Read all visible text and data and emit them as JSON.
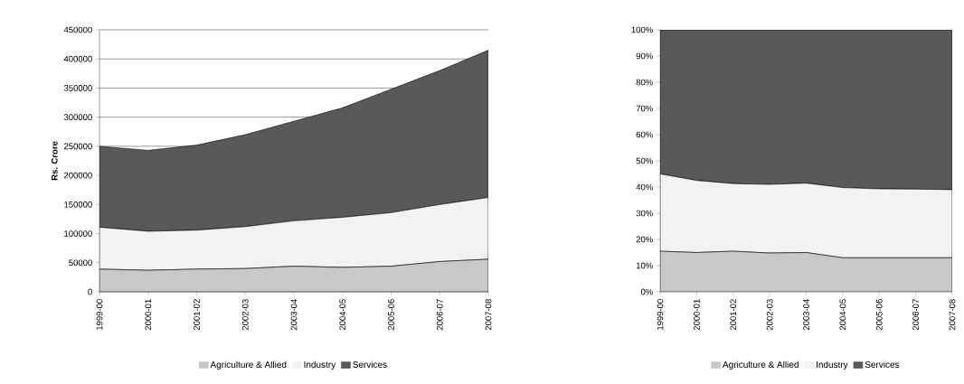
{
  "chart_data": [
    {
      "type": "area",
      "stacked": true,
      "ylabel": "Rs. Crore",
      "categories": [
        "1999-00",
        "2000-01",
        "2001-02",
        "2002-03",
        "2003-04",
        "2004-05",
        "2005-06",
        "2006-07",
        "2007-08"
      ],
      "series": [
        {
          "name": "Agriculture & Allied",
          "color": "#c8c8c8",
          "values": [
            39000,
            37000,
            39000,
            40000,
            44000,
            42000,
            44000,
            52000,
            56000
          ]
        },
        {
          "name": "Industry",
          "color": "#f2f2f2",
          "values": [
            72000,
            67000,
            67000,
            72000,
            78000,
            86000,
            92000,
            98000,
            106000
          ]
        },
        {
          "name": "Services",
          "color": "#595959",
          "values": [
            139000,
            139000,
            146000,
            158000,
            171000,
            188000,
            212000,
            230000,
            253000
          ]
        }
      ],
      "ylim": [
        0,
        450000
      ],
      "yticks": [
        0,
        50000,
        100000,
        150000,
        200000,
        250000,
        300000,
        350000,
        400000,
        450000
      ],
      "grid": "y",
      "legend": "bottom"
    },
    {
      "type": "area",
      "stacked": true,
      "categories": [
        "1999-00",
        "2000-01",
        "2001-02",
        "2002-03",
        "2003-04",
        "2004-05",
        "2005-06",
        "2006-07",
        "2007-08"
      ],
      "series": [
        {
          "name": "Agriculture & Allied",
          "color": "#c8c8c8",
          "values": [
            15.5,
            15,
            15.5,
            14.8,
            15,
            13,
            13,
            13,
            13
          ]
        },
        {
          "name": "Industry",
          "color": "#f2f2f2",
          "values": [
            29.5,
            27.5,
            25.8,
            26.2,
            26.5,
            26.8,
            26.3,
            26.2,
            26
          ]
        },
        {
          "name": "Services",
          "color": "#595959",
          "values": [
            55,
            57.5,
            58.7,
            59,
            58.5,
            60.2,
            60.7,
            60.8,
            61
          ]
        }
      ],
      "ylim": [
        0,
        100
      ],
      "yticks": [
        {
          "value": 0,
          "label": "0%"
        },
        {
          "value": 10,
          "label": "10%"
        },
        {
          "value": 20,
          "label": "20%"
        },
        {
          "value": 30,
          "label": "30%"
        },
        {
          "value": 40,
          "label": "40%"
        },
        {
          "value": 50,
          "label": "50%"
        },
        {
          "value": 60,
          "label": "60%"
        },
        {
          "value": 70,
          "label": "70%"
        },
        {
          "value": 80,
          "label": "80%"
        },
        {
          "value": 90,
          "label": "90%"
        },
        {
          "value": 100,
          "label": "100%"
        }
      ],
      "legend": "bottom"
    }
  ]
}
